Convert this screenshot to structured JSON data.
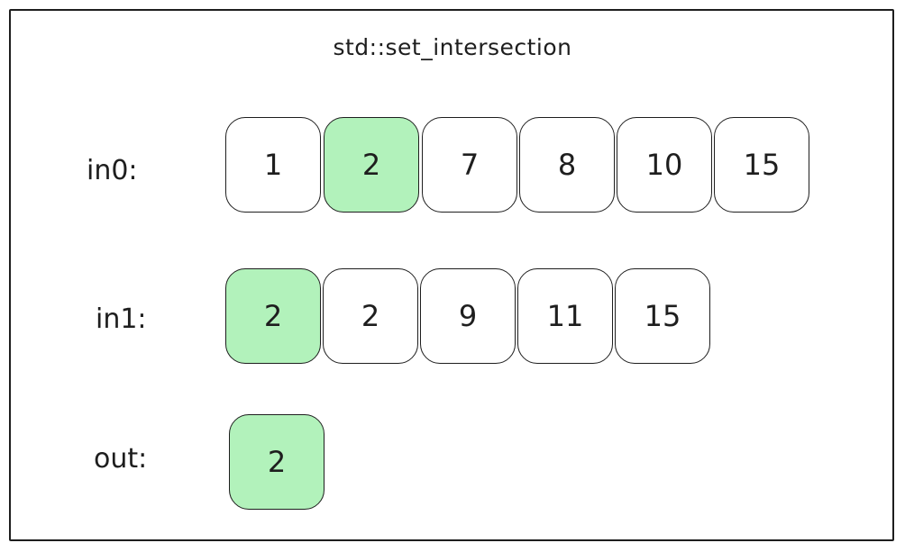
{
  "title": "std::set_intersection",
  "colors": {
    "highlight": "#b2f2bb",
    "stroke": "#1e1e1e",
    "background": "#ffffff"
  },
  "rows": [
    {
      "label": "in0:",
      "cells": [
        {
          "value": "1",
          "highlight": false
        },
        {
          "value": "2",
          "highlight": true
        },
        {
          "value": "7",
          "highlight": false
        },
        {
          "value": "8",
          "highlight": false
        },
        {
          "value": "10",
          "highlight": false
        },
        {
          "value": "15",
          "highlight": false
        }
      ]
    },
    {
      "label": "in1:",
      "cells": [
        {
          "value": "2",
          "highlight": true
        },
        {
          "value": "2",
          "highlight": false
        },
        {
          "value": "9",
          "highlight": false
        },
        {
          "value": "11",
          "highlight": false
        },
        {
          "value": "15",
          "highlight": false
        }
      ]
    },
    {
      "label": "out:",
      "cells": [
        {
          "value": "2",
          "highlight": true
        }
      ]
    }
  ]
}
